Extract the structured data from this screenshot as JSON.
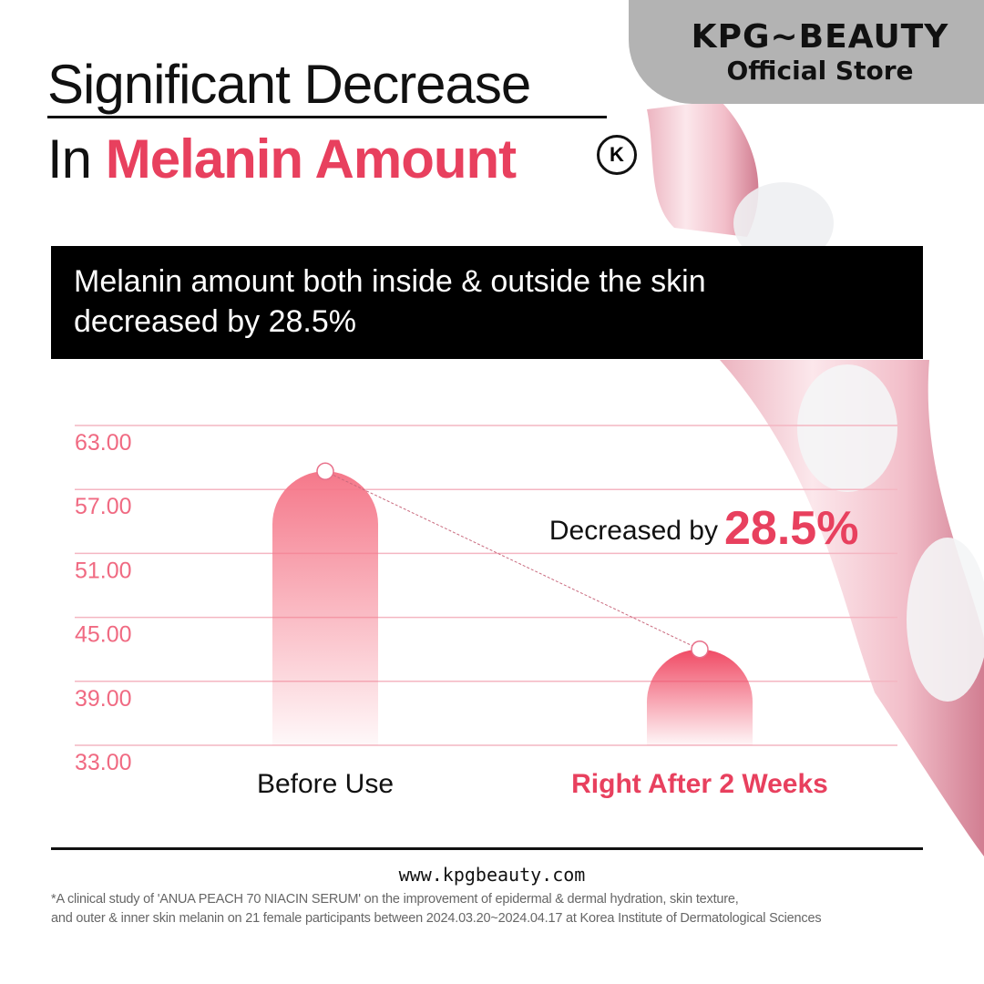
{
  "banner": {
    "brand": "KPG~BEAUTY",
    "subtitle": "Official Store"
  },
  "title": {
    "line1": "Significant Decrease",
    "line2_prefix": "In ",
    "line2_accent": "Melanin Amount"
  },
  "logo": {
    "letter": "K"
  },
  "summary": {
    "line1": "Melanin amount both inside & outside the skin",
    "line2": "decreased by 28.5%"
  },
  "chart_data": {
    "type": "bar",
    "categories": [
      "Before Use",
      "Right After 2 Weeks"
    ],
    "values": [
      58.7,
      42.0
    ],
    "ylim": [
      33,
      63
    ],
    "yticks": [
      "63.00",
      "57.00",
      "51.00",
      "45.00",
      "39.00",
      "33.00"
    ],
    "grid": true,
    "annotation": {
      "prefix": "Decreased by ",
      "value": "28.5%"
    },
    "colors": {
      "bar": "#f5788a",
      "accent": "#e8405e",
      "grid": "#f4b6c2",
      "tick": "#f06a82"
    }
  },
  "footer": {
    "url": "www.kpgbeauty.com",
    "note_line1": "*A clinical study of 'ANUA PEACH 70 NIACIN SERUM' on the improvement of epidermal & dermal hydration, skin texture,",
    "note_line2": "and outer & inner skin melanin on 21 female participants between 2024.03.20~2024.04.17 at Korea Institute of Dermatological Sciences"
  }
}
